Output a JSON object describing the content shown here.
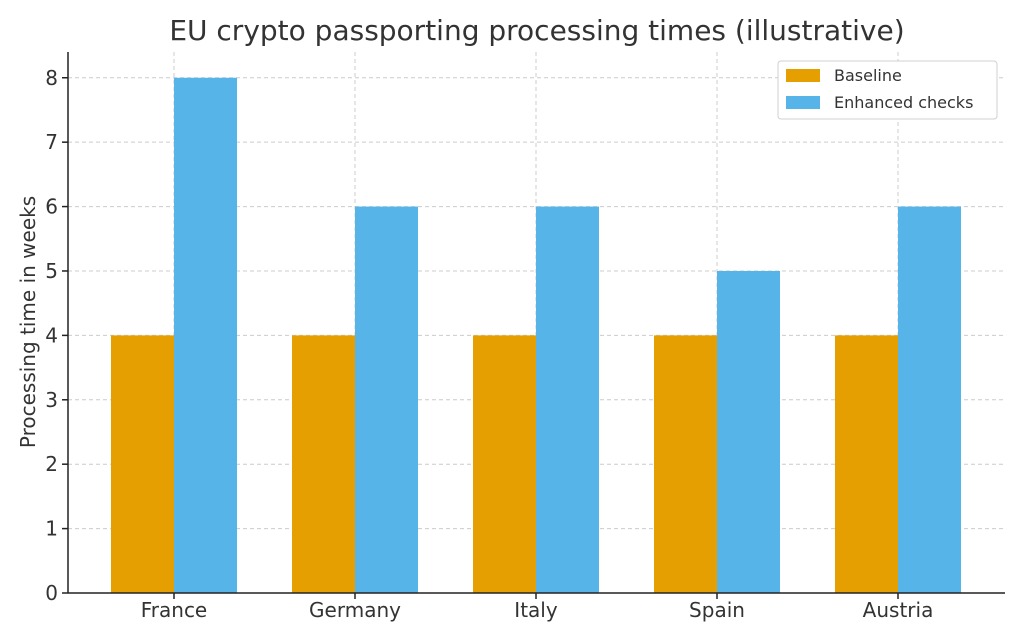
{
  "chart_data": {
    "type": "bar",
    "title": "EU crypto passporting processing times (illustrative)",
    "xlabel": "",
    "ylabel": "Processing time in weeks",
    "categories": [
      "France",
      "Germany",
      "Italy",
      "Spain",
      "Austria"
    ],
    "series": [
      {
        "name": "Baseline",
        "values": [
          4,
          4,
          4,
          4,
          4
        ],
        "color": "#E69F00"
      },
      {
        "name": "Enhanced checks",
        "values": [
          8,
          6,
          6,
          5,
          6
        ],
        "color": "#56B4E9"
      }
    ],
    "ylim": [
      0,
      8.4
    ],
    "yticks": [
      "0",
      "1",
      "2",
      "3",
      "4",
      "5",
      "6",
      "7",
      "8"
    ],
    "grid": true,
    "legend_position": "top-right"
  }
}
